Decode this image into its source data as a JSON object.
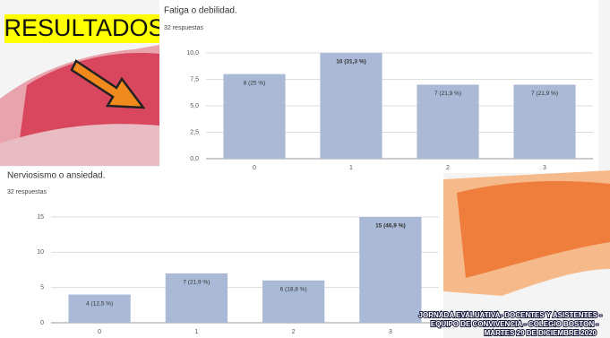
{
  "banner": "RESULTADOS",
  "footer": {
    "lines": [
      "JORNADA EVALUATIVA- DOCENTES Y ASISTENTES -",
      "EQUIPO DE CONVIVENCIA - COLEGIO BOSTON -",
      "MARTES 29 DE DICIEMBRE 2020"
    ]
  },
  "chart_data": [
    {
      "type": "bar",
      "title": "Fatiga o debilidad.",
      "subtitle": "32 respuestas",
      "categories": [
        "0",
        "1",
        "2",
        "3"
      ],
      "values": [
        8,
        10,
        7,
        7
      ],
      "value_labels": [
        "8 (25 %)",
        "10 (31,3 %)",
        "7 (21,9 %)",
        "7 (21,9 %)"
      ],
      "color": "#a9b9d6",
      "ylim": [
        0,
        10
      ],
      "yticks": [
        {
          "value": 0,
          "label": "0,0"
        },
        {
          "value": 2.5,
          "label": "2,5"
        },
        {
          "value": 5,
          "label": "5,0"
        },
        {
          "value": 7.5,
          "label": "7,5"
        },
        {
          "value": 10,
          "label": "10,0"
        }
      ],
      "grid": true
    },
    {
      "type": "bar",
      "title": "Nerviosismo o ansiedad.",
      "subtitle": "32 respuestas",
      "categories": [
        "0",
        "1",
        "2",
        "3"
      ],
      "values": [
        4,
        7,
        6,
        15
      ],
      "value_labels": [
        "4 (12,5 %)",
        "7 (21,9 %)",
        "6 (18,8 %)",
        "15 (46,9 %)"
      ],
      "color": "#a9b9d6",
      "ylim": [
        0,
        15
      ],
      "yticks": [
        0,
        5,
        10,
        15
      ],
      "grid": true
    }
  ]
}
